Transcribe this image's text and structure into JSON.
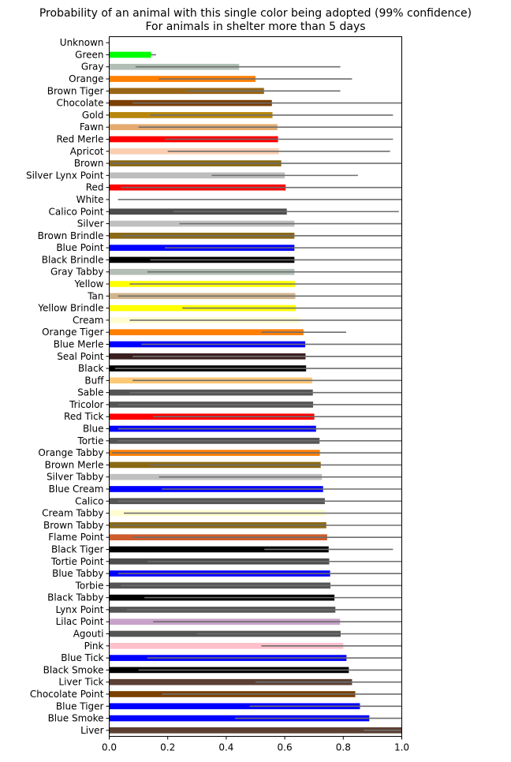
{
  "chart_data": {
    "type": "bar",
    "orientation": "horizontal",
    "title": "Probability of an animal with this single color being adopted (99% confidence)",
    "subtitle": "For animals in shelter more than 5 days",
    "xlim": [
      0,
      1.0
    ],
    "xticks": [
      "0.0",
      "0.2",
      "0.4",
      "0.6",
      "0.8",
      "1.0"
    ],
    "grid": false,
    "error_bar_color": "#6e6e6e",
    "categories": [
      "Unknown",
      "Green",
      "Gray",
      "Orange",
      "Brown Tiger",
      "Chocolate",
      "Gold",
      "Fawn",
      "Red Merle",
      "Apricot",
      "Brown",
      "Silver Lynx Point",
      "Red",
      "White",
      "Calico Point",
      "Silver",
      "Brown Brindle",
      "Blue Point",
      "Black Brindle",
      "Gray Tabby",
      "Yellow",
      "Tan",
      "Yellow Brindle",
      "Cream",
      "Orange Tiger",
      "Blue Merle",
      "Seal Point",
      "Black",
      "Buff",
      "Sable",
      "Tricolor",
      "Red Tick",
      "Blue",
      "Tortie",
      "Orange Tabby",
      "Brown Merle",
      "Silver Tabby",
      "Blue Cream",
      "Calico",
      "Cream Tabby",
      "Brown Tabby",
      "Flame Point",
      "Black Tiger",
      "Tortie Point",
      "Blue Tabby",
      "Torbie",
      "Black Tabby",
      "Lynx Point",
      "Lilac Point",
      "Agouti",
      "Pink",
      "Blue Tick",
      "Black Smoke",
      "Liver Tick",
      "Chocolate Point",
      "Blue Tiger",
      "Blue Smoke",
      "Liver"
    ],
    "values": [
      0,
      0.143,
      0.444,
      0.5,
      0.529,
      0.556,
      0.558,
      0.575,
      0.577,
      0.58,
      0.588,
      0.6,
      0.603,
      0,
      0.607,
      0.633,
      0.633,
      0.633,
      0.633,
      0.633,
      0.635,
      0.636,
      0.638,
      0.65,
      0.664,
      0.67,
      0.671,
      0.673,
      0.694,
      0.696,
      0.697,
      0.701,
      0.707,
      0.719,
      0.72,
      0.723,
      0.727,
      0.731,
      0.737,
      0.74,
      0.742,
      0.745,
      0.75,
      0.752,
      0.755,
      0.756,
      0.77,
      0.773,
      0.789,
      0.791,
      0.8,
      0.811,
      0.819,
      0.83,
      0.841,
      0.857,
      0.889,
      1.0
    ],
    "ci_low": [
      null,
      0.143,
      0.09,
      0.17,
      0.27,
      0.08,
      0.14,
      0.1,
      0.19,
      0.2,
      0.01,
      0.35,
      0.04,
      0.03,
      0.22,
      0.24,
      0.04,
      0.19,
      0.14,
      0.13,
      0.07,
      0.03,
      0.25,
      0.07,
      0.52,
      0.11,
      0.08,
      0.02,
      0.08,
      0.07,
      0.03,
      0.15,
      0.03,
      0.03,
      0.01,
      0.14,
      0.17,
      0.18,
      0.03,
      0.05,
      0.01,
      0.08,
      0.53,
      0.13,
      0.03,
      0.04,
      0.12,
      0.06,
      0.15,
      0.3,
      0.52,
      0.13,
      0.1,
      0.5,
      0.18,
      0.48,
      0.43,
      0.87
    ],
    "ci_high": [
      null,
      0.16,
      0.79,
      0.83,
      0.79,
      1.0,
      0.97,
      1.0,
      0.97,
      0.96,
      1.0,
      0.85,
      1.0,
      1.0,
      0.99,
      1.0,
      1.0,
      1.0,
      1.0,
      1.0,
      1.0,
      1.0,
      1.0,
      1.0,
      0.81,
      1.0,
      1.0,
      1.0,
      1.0,
      1.0,
      1.0,
      1.0,
      1.0,
      1.0,
      1.0,
      1.0,
      1.0,
      1.0,
      1.0,
      1.0,
      1.0,
      1.0,
      0.97,
      1.0,
      1.0,
      1.0,
      1.0,
      1.0,
      1.0,
      1.0,
      1.0,
      1.0,
      1.0,
      1.0,
      1.0,
      1.0,
      1.0,
      1.0
    ],
    "colors": [
      "#ffffff",
      "#00ff00",
      "#b2beb5",
      "#ff7f00",
      "#996515",
      "#7b3f00",
      "#b8860b",
      "#e5aa70",
      "#ff0000",
      "#fbceb1",
      "#8b6914",
      "#bdbdbd",
      "#ff0000",
      "#ffffff",
      "#4d4d4d",
      "#c0c0c0",
      "#8b6914",
      "#0000ff",
      "#000000",
      "#b2beb5",
      "#ffff00",
      "#d2b48c",
      "#ffff00",
      "#fffdd0",
      "#ff7f00",
      "#0000ff",
      "#3b1f1f",
      "#000000",
      "#ffc875",
      "#555555",
      "#555555",
      "#ff0000",
      "#0000ff",
      "#555555",
      "#ff7f00",
      "#8b6914",
      "#c0c0c0",
      "#0000ff",
      "#555555",
      "#fffdd0",
      "#8b6914",
      "#cd5c2c",
      "#000000",
      "#4d4d4d",
      "#0000ff",
      "#555555",
      "#000000",
      "#555555",
      "#c8a2c8",
      "#555555",
      "#ffc0cb",
      "#0000ff",
      "#000000",
      "#5c4033",
      "#7b3f00",
      "#0000ff",
      "#0000ff",
      "#5c4033"
    ]
  }
}
